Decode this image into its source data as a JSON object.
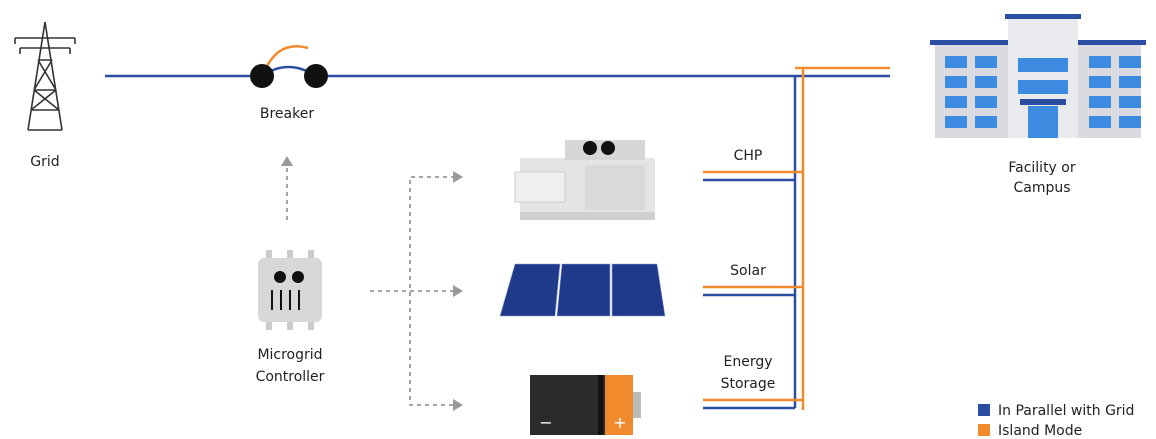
{
  "grid": {
    "label": "Grid"
  },
  "breaker": {
    "label": "Breaker"
  },
  "facility": {
    "label_lines": [
      "Facility or",
      "Campus"
    ]
  },
  "controller": {
    "label_lines": [
      "Microgrid",
      "Controller"
    ]
  },
  "sources": [
    {
      "label_lines": [
        "CHP"
      ]
    },
    {
      "label_lines": [
        "Solar"
      ]
    },
    {
      "label_lines": [
        "Energy",
        "Storage"
      ],
      "terminals": [
        "−",
        "+"
      ]
    }
  ],
  "legend": [
    {
      "label": "In Parallel with Grid",
      "color": "#2b4ea2"
    },
    {
      "label": "Island Mode",
      "color": "#f08a2c"
    }
  ]
}
